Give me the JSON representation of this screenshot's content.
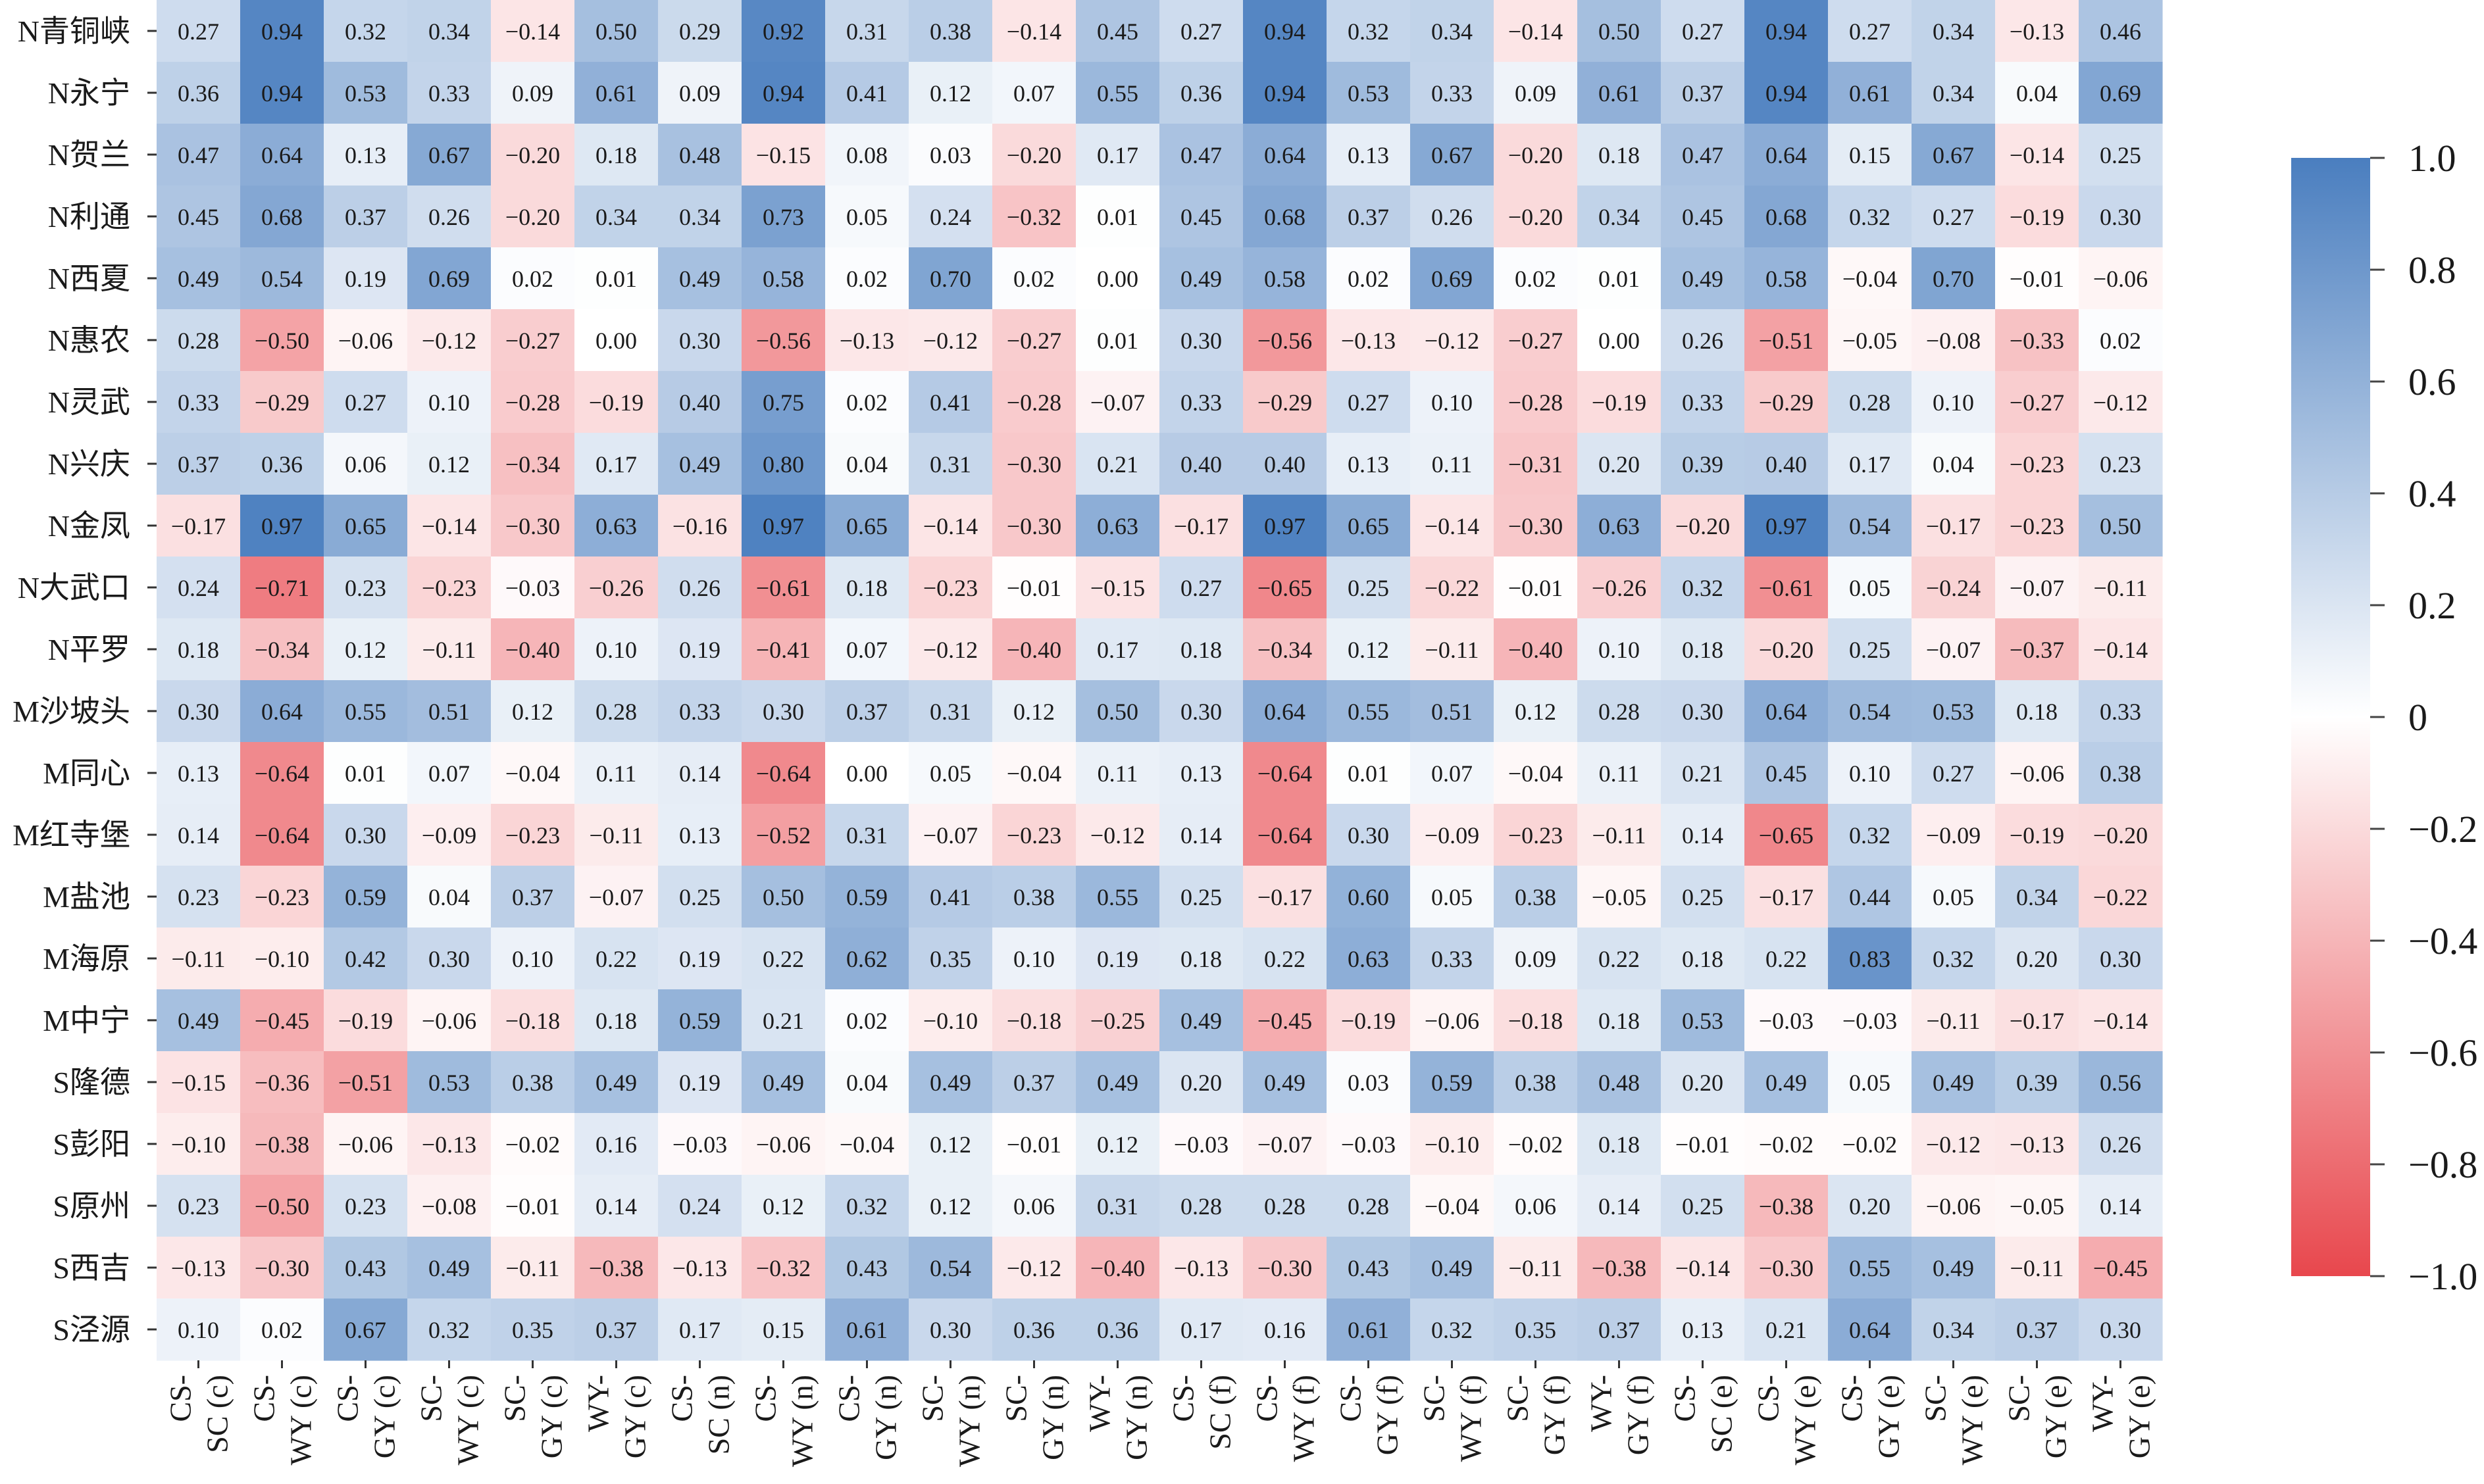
{
  "chart_data": {
    "type": "heatmap",
    "rows": [
      "N青铜峡",
      "N永宁",
      "N贺兰",
      "N利通",
      "N西夏",
      "N惠农",
      "N灵武",
      "N兴庆",
      "N金凤",
      "N大武口",
      "N平罗",
      "M沙坡头",
      "M同心",
      "M红寺堡",
      "M盐池",
      "M海原",
      "M中宁",
      "S隆德",
      "S彭阳",
      "S原州",
      "S西吉",
      "S泾源"
    ],
    "columns": [
      [
        "CS-",
        "SC (c)"
      ],
      [
        "CS-",
        "WY (c)"
      ],
      [
        "CS-",
        "GY (c)"
      ],
      [
        "SC-",
        "WY (c)"
      ],
      [
        "SC-",
        "GY (c)"
      ],
      [
        "WY-",
        "GY (c)"
      ],
      [
        "CS-",
        "SC (n)"
      ],
      [
        "CS-",
        "WY (n)"
      ],
      [
        "CS-",
        "GY (n)"
      ],
      [
        "SC-",
        "WY (n)"
      ],
      [
        "SC-",
        "GY (n)"
      ],
      [
        "WY-",
        "GY (n)"
      ],
      [
        "CS-",
        "SC (f)"
      ],
      [
        "CS-",
        "WY (f)"
      ],
      [
        "CS-",
        "GY (f)"
      ],
      [
        "SC-",
        "WY (f)"
      ],
      [
        "SC-",
        "GY (f)"
      ],
      [
        "WY-",
        "GY (f)"
      ],
      [
        "CS-",
        "SC (e)"
      ],
      [
        "CS-",
        "WY (e)"
      ],
      [
        "CS-",
        "GY (e)"
      ],
      [
        "SC-",
        "WY (e)"
      ],
      [
        "SC-",
        "GY (e)"
      ],
      [
        "WY-",
        "GY (e)"
      ]
    ],
    "values": [
      [
        0.27,
        0.94,
        0.32,
        0.34,
        -0.14,
        0.5,
        0.29,
        0.92,
        0.31,
        0.38,
        -0.14,
        0.45,
        0.27,
        0.94,
        0.32,
        0.34,
        -0.14,
        0.5,
        0.27,
        0.94,
        0.27,
        0.34,
        -0.13,
        0.46
      ],
      [
        0.36,
        0.94,
        0.53,
        0.33,
        0.09,
        0.61,
        0.09,
        0.94,
        0.41,
        0.12,
        0.07,
        0.55,
        0.36,
        0.94,
        0.53,
        0.33,
        0.09,
        0.61,
        0.37,
        0.94,
        0.61,
        0.34,
        0.04,
        0.69
      ],
      [
        0.47,
        0.64,
        0.13,
        0.67,
        -0.2,
        0.18,
        0.48,
        -0.15,
        0.08,
        0.03,
        -0.2,
        0.17,
        0.47,
        0.64,
        0.13,
        0.67,
        -0.2,
        0.18,
        0.47,
        0.64,
        0.15,
        0.67,
        -0.14,
        0.25
      ],
      [
        0.45,
        0.68,
        0.37,
        0.26,
        -0.2,
        0.34,
        0.34,
        0.73,
        0.05,
        0.24,
        -0.32,
        0.01,
        0.45,
        0.68,
        0.37,
        0.26,
        -0.2,
        0.34,
        0.45,
        0.68,
        0.32,
        0.27,
        -0.19,
        0.3
      ],
      [
        0.49,
        0.54,
        0.19,
        0.69,
        0.02,
        0.01,
        0.49,
        0.58,
        0.02,
        0.7,
        0.02,
        0.0,
        0.49,
        0.58,
        0.02,
        0.69,
        0.02,
        0.01,
        0.49,
        0.58,
        -0.04,
        0.7,
        -0.01,
        -0.06
      ],
      [
        0.28,
        -0.5,
        -0.06,
        -0.12,
        -0.27,
        0.0,
        0.3,
        -0.56,
        -0.13,
        -0.12,
        -0.27,
        0.01,
        0.3,
        -0.56,
        -0.13,
        -0.12,
        -0.27,
        0.0,
        0.26,
        -0.51,
        -0.05,
        -0.08,
        -0.33,
        0.02
      ],
      [
        0.33,
        -0.29,
        0.27,
        0.1,
        -0.28,
        -0.19,
        0.4,
        0.75,
        0.02,
        0.41,
        -0.28,
        -0.07,
        0.33,
        -0.29,
        0.27,
        0.1,
        -0.28,
        -0.19,
        0.33,
        -0.29,
        0.28,
        0.1,
        -0.27,
        -0.12
      ],
      [
        0.37,
        0.36,
        0.06,
        0.12,
        -0.34,
        0.17,
        0.49,
        0.8,
        0.04,
        0.31,
        -0.3,
        0.21,
        0.4,
        0.4,
        0.13,
        0.11,
        -0.31,
        0.2,
        0.39,
        0.4,
        0.17,
        0.04,
        -0.23,
        0.23
      ],
      [
        -0.17,
        0.97,
        0.65,
        -0.14,
        -0.3,
        0.63,
        -0.16,
        0.97,
        0.65,
        -0.14,
        -0.3,
        0.63,
        -0.17,
        0.97,
        0.65,
        -0.14,
        -0.3,
        0.63,
        -0.2,
        0.97,
        0.54,
        -0.17,
        -0.23,
        0.5
      ],
      [
        0.24,
        -0.71,
        0.23,
        -0.23,
        -0.03,
        -0.26,
        0.26,
        -0.61,
        0.18,
        -0.23,
        -0.01,
        -0.15,
        0.27,
        -0.65,
        0.25,
        -0.22,
        -0.01,
        -0.26,
        0.32,
        -0.61,
        0.05,
        -0.24,
        -0.07,
        -0.11
      ],
      [
        0.18,
        -0.34,
        0.12,
        -0.11,
        -0.4,
        0.1,
        0.19,
        -0.41,
        0.07,
        -0.12,
        -0.4,
        0.17,
        0.18,
        -0.34,
        0.12,
        -0.11,
        -0.4,
        0.1,
        0.18,
        -0.2,
        0.25,
        -0.07,
        -0.37,
        -0.14
      ],
      [
        0.3,
        0.64,
        0.55,
        0.51,
        0.12,
        0.28,
        0.33,
        0.3,
        0.37,
        0.31,
        0.12,
        0.5,
        0.3,
        0.64,
        0.55,
        0.51,
        0.12,
        0.28,
        0.3,
        0.64,
        0.54,
        0.53,
        0.18,
        0.33
      ],
      [
        0.13,
        -0.64,
        0.01,
        0.07,
        -0.04,
        0.11,
        0.14,
        -0.64,
        0.0,
        0.05,
        -0.04,
        0.11,
        0.13,
        -0.64,
        0.01,
        0.07,
        -0.04,
        0.11,
        0.21,
        0.45,
        0.1,
        0.27,
        -0.06,
        0.38
      ],
      [
        0.14,
        -0.64,
        0.3,
        -0.09,
        -0.23,
        -0.11,
        0.13,
        -0.52,
        0.31,
        -0.07,
        -0.23,
        -0.12,
        0.14,
        -0.64,
        0.3,
        -0.09,
        -0.23,
        -0.11,
        0.14,
        -0.65,
        0.32,
        -0.09,
        -0.19,
        -0.2
      ],
      [
        0.23,
        -0.23,
        0.59,
        0.04,
        0.37,
        -0.07,
        0.25,
        0.5,
        0.59,
        0.41,
        0.38,
        0.55,
        0.25,
        -0.17,
        0.6,
        0.05,
        0.38,
        -0.05,
        0.25,
        -0.17,
        0.44,
        0.05,
        0.34,
        -0.22
      ],
      [
        -0.11,
        -0.1,
        0.42,
        0.3,
        0.1,
        0.22,
        0.19,
        0.22,
        0.62,
        0.35,
        0.1,
        0.19,
        0.18,
        0.22,
        0.63,
        0.33,
        0.09,
        0.22,
        0.18,
        0.22,
        0.83,
        0.32,
        0.2,
        0.3
      ],
      [
        0.49,
        -0.45,
        -0.19,
        -0.06,
        -0.18,
        0.18,
        0.59,
        0.21,
        0.02,
        -0.1,
        -0.18,
        -0.25,
        0.49,
        -0.45,
        -0.19,
        -0.06,
        -0.18,
        0.18,
        0.53,
        -0.03,
        -0.03,
        -0.11,
        -0.17,
        -0.14
      ],
      [
        -0.15,
        -0.36,
        -0.51,
        0.53,
        0.38,
        0.49,
        0.19,
        0.49,
        0.04,
        0.49,
        0.37,
        0.49,
        0.2,
        0.49,
        0.03,
        0.59,
        0.38,
        0.48,
        0.2,
        0.49,
        0.05,
        0.49,
        0.39,
        0.56
      ],
      [
        -0.1,
        -0.38,
        -0.06,
        -0.13,
        -0.02,
        0.16,
        -0.03,
        -0.06,
        -0.04,
        0.12,
        -0.01,
        0.12,
        -0.03,
        -0.07,
        -0.03,
        -0.1,
        -0.02,
        0.18,
        -0.01,
        -0.02,
        -0.02,
        -0.12,
        -0.13,
        0.26
      ],
      [
        0.23,
        -0.5,
        0.23,
        -0.08,
        -0.01,
        0.14,
        0.24,
        0.12,
        0.32,
        0.12,
        0.06,
        0.31,
        0.28,
        0.28,
        0.28,
        -0.04,
        0.06,
        0.14,
        0.25,
        -0.38,
        0.2,
        -0.06,
        -0.05,
        0.14
      ],
      [
        -0.13,
        -0.3,
        0.43,
        0.49,
        -0.11,
        -0.38,
        -0.13,
        -0.32,
        0.43,
        0.54,
        -0.12,
        -0.4,
        -0.13,
        -0.3,
        0.43,
        0.49,
        -0.11,
        -0.38,
        -0.14,
        -0.3,
        0.55,
        0.49,
        -0.11,
        -0.45
      ],
      [
        0.1,
        0.02,
        0.67,
        0.32,
        0.35,
        0.37,
        0.17,
        0.15,
        0.61,
        0.3,
        0.36,
        0.36,
        0.17,
        0.16,
        0.61,
        0.32,
        0.35,
        0.37,
        0.13,
        0.21,
        0.64,
        0.34,
        0.37,
        0.3
      ]
    ],
    "vmin": -1.0,
    "vmax": 1.0,
    "colormap": {
      "negative": "#e8474d",
      "middle": "#ffffff",
      "positive": "#4a7ebf"
    },
    "colorbar_ticks": [
      1.0,
      0.8,
      0.6,
      0.4,
      0.2,
      0,
      -0.2,
      -0.4,
      -0.6,
      -0.8,
      -1.0
    ],
    "colorbar_tick_labels": [
      "1.0",
      "0.8",
      "0.6",
      "0.4",
      "0.2",
      "0",
      "−0.2",
      "−0.4",
      "−0.6",
      "−0.8",
      "−1.0"
    ],
    "legend_position": "right",
    "grid": false,
    "title": "",
    "xlabel": "",
    "ylabel": ""
  }
}
